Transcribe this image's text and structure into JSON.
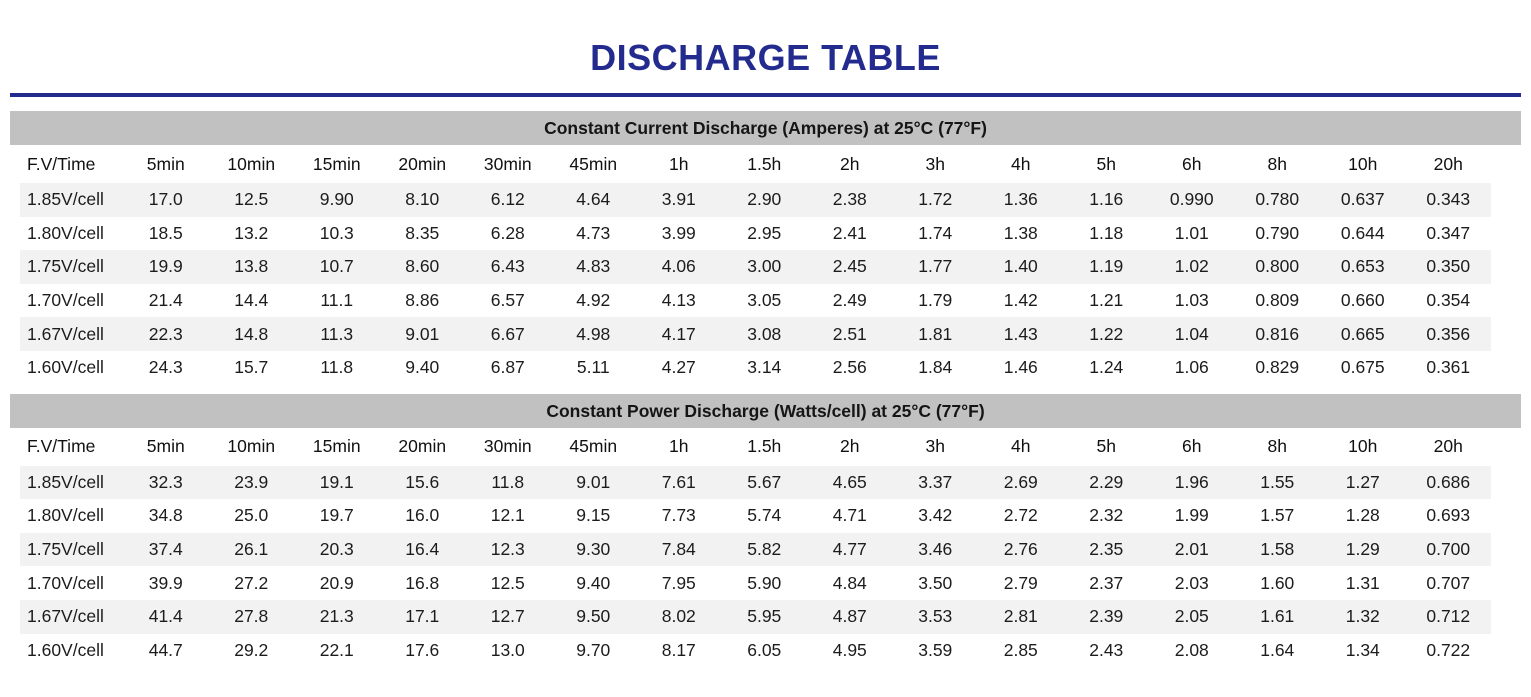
{
  "title": "DISCHARGE TABLE",
  "columns": [
    "F.V/Time",
    "5min",
    "10min",
    "15min",
    "20min",
    "30min",
    "45min",
    "1h",
    "1.5h",
    "2h",
    "3h",
    "4h",
    "5h",
    "6h",
    "8h",
    "10h",
    "20h"
  ],
  "sections": [
    {
      "header": "Constant Current Discharge (Amperes) at 25°C (77°F)",
      "rows": [
        {
          "label": "1.85V/cell",
          "values": [
            "17.0",
            "12.5",
            "9.90",
            "8.10",
            "6.12",
            "4.64",
            "3.91",
            "2.90",
            "2.38",
            "1.72",
            "1.36",
            "1.16",
            "0.990",
            "0.780",
            "0.637",
            "0.343"
          ]
        },
        {
          "label": "1.80V/cell",
          "values": [
            "18.5",
            "13.2",
            "10.3",
            "8.35",
            "6.28",
            "4.73",
            "3.99",
            "2.95",
            "2.41",
            "1.74",
            "1.38",
            "1.18",
            "1.01",
            "0.790",
            "0.644",
            "0.347"
          ]
        },
        {
          "label": "1.75V/cell",
          "values": [
            "19.9",
            "13.8",
            "10.7",
            "8.60",
            "6.43",
            "4.83",
            "4.06",
            "3.00",
            "2.45",
            "1.77",
            "1.40",
            "1.19",
            "1.02",
            "0.800",
            "0.653",
            "0.350"
          ]
        },
        {
          "label": "1.70V/cell",
          "values": [
            "21.4",
            "14.4",
            "11.1",
            "8.86",
            "6.57",
            "4.92",
            "4.13",
            "3.05",
            "2.49",
            "1.79",
            "1.42",
            "1.21",
            "1.03",
            "0.809",
            "0.660",
            "0.354"
          ]
        },
        {
          "label": "1.67V/cell",
          "values": [
            "22.3",
            "14.8",
            "11.3",
            "9.01",
            "6.67",
            "4.98",
            "4.17",
            "3.08",
            "2.51",
            "1.81",
            "1.43",
            "1.22",
            "1.04",
            "0.816",
            "0.665",
            "0.356"
          ]
        },
        {
          "label": "1.60V/cell",
          "values": [
            "24.3",
            "15.7",
            "11.8",
            "9.40",
            "6.87",
            "5.11",
            "4.27",
            "3.14",
            "2.56",
            "1.84",
            "1.46",
            "1.24",
            "1.06",
            "0.829",
            "0.675",
            "0.361"
          ]
        }
      ]
    },
    {
      "header": "Constant Power Discharge (Watts/cell) at 25°C (77°F)",
      "rows": [
        {
          "label": "1.85V/cell",
          "values": [
            "32.3",
            "23.9",
            "19.1",
            "15.6",
            "11.8",
            "9.01",
            "7.61",
            "5.67",
            "4.65",
            "3.37",
            "2.69",
            "2.29",
            "1.96",
            "1.55",
            "1.27",
            "0.686"
          ]
        },
        {
          "label": "1.80V/cell",
          "values": [
            "34.8",
            "25.0",
            "19.7",
            "16.0",
            "12.1",
            "9.15",
            "7.73",
            "5.74",
            "4.71",
            "3.42",
            "2.72",
            "2.32",
            "1.99",
            "1.57",
            "1.28",
            "0.693"
          ]
        },
        {
          "label": "1.75V/cell",
          "values": [
            "37.4",
            "26.1",
            "20.3",
            "16.4",
            "12.3",
            "9.30",
            "7.84",
            "5.82",
            "4.77",
            "3.46",
            "2.76",
            "2.35",
            "2.01",
            "1.58",
            "1.29",
            "0.700"
          ]
        },
        {
          "label": "1.70V/cell",
          "values": [
            "39.9",
            "27.2",
            "20.9",
            "16.8",
            "12.5",
            "9.40",
            "7.95",
            "5.90",
            "4.84",
            "3.50",
            "2.79",
            "2.37",
            "2.03",
            "1.60",
            "1.31",
            "0.707"
          ]
        },
        {
          "label": "1.67V/cell",
          "values": [
            "41.4",
            "27.8",
            "21.3",
            "17.1",
            "12.7",
            "9.50",
            "8.02",
            "5.95",
            "4.87",
            "3.53",
            "2.81",
            "2.39",
            "2.05",
            "1.61",
            "1.32",
            "0.712"
          ]
        },
        {
          "label": "1.60V/cell",
          "values": [
            "44.7",
            "29.2",
            "22.1",
            "17.6",
            "13.0",
            "9.70",
            "8.17",
            "6.05",
            "4.95",
            "3.59",
            "2.85",
            "2.43",
            "2.08",
            "1.64",
            "1.34",
            "0.722"
          ]
        }
      ]
    }
  ],
  "colors": {
    "accent_navy": "#232b8f",
    "section_bar_gray": "#c1c1c1",
    "row_stripe_gray": "#f2f2f2",
    "text": "#1c1c1c"
  }
}
